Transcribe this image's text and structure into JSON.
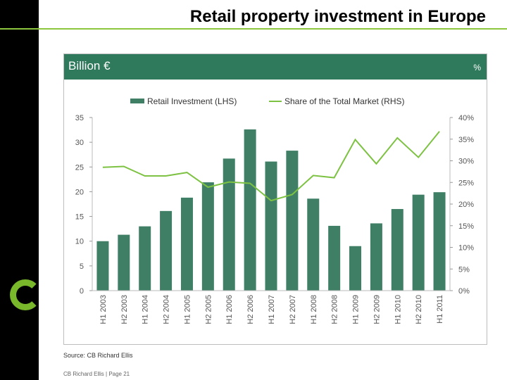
{
  "slide": {
    "title": "Retail property investment in Europe",
    "source": "Source: CB Richard Ellis",
    "footer": "CB Richard Ellis | Page 21"
  },
  "colors": {
    "bar": "#3f7f66",
    "line": "#7dc242",
    "header": "#2f7a5c",
    "brand": "#78b82a"
  },
  "chart_data": {
    "type": "bar",
    "left_unit": "Billion €",
    "right_unit": "%",
    "categories": [
      "H1 2003",
      "H2 2003",
      "H1 2004",
      "H2 2004",
      "H1 2005",
      "H2 2005",
      "H1 2006",
      "H2 2006",
      "H1 2007",
      "H2 2007",
      "H1 2008",
      "H2 2008",
      "H1 2009",
      "H2 2009",
      "H1 2010",
      "H2 2010",
      "H1 2011"
    ],
    "series": [
      {
        "name": "Retail Investment (LHS)",
        "type": "bar",
        "axis": "left",
        "values": [
          10.0,
          11.3,
          13.0,
          16.1,
          18.8,
          21.9,
          26.7,
          32.6,
          26.1,
          28.3,
          18.6,
          13.1,
          9.0,
          13.6,
          16.5,
          19.4,
          19.9
        ]
      },
      {
        "name": "Share of the Total Market (RHS)",
        "type": "line",
        "axis": "right",
        "values": [
          28.5,
          28.7,
          26.5,
          26.5,
          27.3,
          23.9,
          25.1,
          24.8,
          20.8,
          22.2,
          26.6,
          26.1,
          34.9,
          29.3,
          35.3,
          30.8,
          36.8
        ]
      }
    ],
    "ylim_left": [
      0,
      35
    ],
    "yticks_left": [
      0,
      5,
      10,
      15,
      20,
      25,
      30,
      35
    ],
    "ytick_labels_left": [
      "0",
      "5",
      "10",
      "15",
      "20",
      "25",
      "30",
      "35"
    ],
    "ylim_right": [
      0,
      40
    ],
    "yticks_right": [
      0,
      5,
      10,
      15,
      20,
      25,
      30,
      35,
      40
    ],
    "ytick_labels_right": [
      "0%",
      "5%",
      "10%",
      "15%",
      "20%",
      "25%",
      "30%",
      "35%",
      "40%"
    ],
    "legend_position": "top",
    "grid": false
  }
}
